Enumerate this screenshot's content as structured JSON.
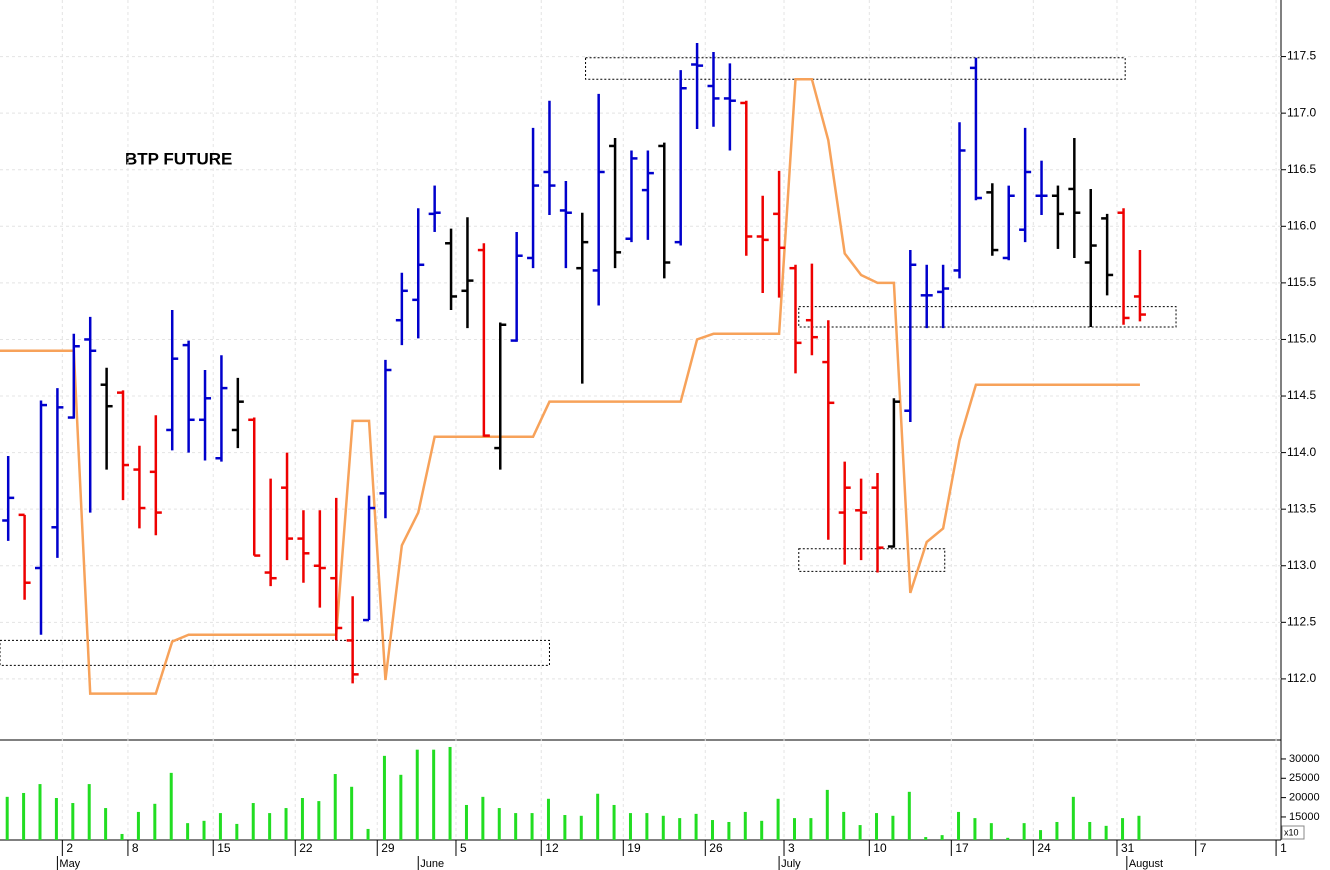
{
  "chart_data": [
    {
      "type": "ohlc",
      "title": "BTP FUTURE",
      "x": [
        0,
        1,
        2,
        3,
        4,
        5,
        6,
        7,
        8,
        9,
        10,
        11,
        12,
        13,
        14,
        15,
        16,
        17,
        18,
        19,
        20,
        21,
        22,
        23,
        24,
        25,
        26,
        27,
        28,
        29,
        30,
        31,
        32,
        33,
        34,
        35,
        36,
        37,
        38,
        39,
        40,
        41,
        42,
        43,
        44,
        45,
        46,
        47,
        48,
        49,
        50,
        51,
        52,
        53,
        54,
        55,
        56,
        57,
        58,
        59,
        60,
        61,
        62,
        63,
        64,
        65,
        66,
        67,
        68,
        69
      ],
      "open": [
        113.4,
        113.45,
        112.98,
        113.34,
        114.31,
        115.0,
        114.6,
        114.53,
        113.85,
        113.83,
        114.2,
        114.95,
        114.29,
        113.95,
        114.2,
        114.29,
        112.94,
        113.69,
        113.24,
        113.0,
        112.89,
        112.34,
        112.52,
        113.64,
        115.17,
        115.35,
        116.11,
        115.85,
        115.43,
        115.79,
        114.04,
        114.99,
        115.72,
        116.48,
        116.14,
        115.63,
        115.61,
        116.71,
        115.89,
        116.32,
        116.71,
        115.86,
        117.43,
        117.24,
        117.13,
        117.09,
        115.91,
        116.11,
        115.63,
        115.17,
        114.8,
        113.47,
        113.49,
        113.69,
        113.17,
        114.37,
        115.39,
        115.42,
        115.61,
        117.4,
        116.3,
        115.72,
        115.97,
        116.27,
        116.27,
        116.33,
        115.68,
        116.07,
        116.12,
        115.38
      ],
      "high": [
        113.97,
        113.45,
        114.46,
        114.57,
        115.05,
        115.2,
        114.75,
        114.55,
        114.06,
        114.33,
        115.26,
        114.99,
        114.73,
        114.86,
        114.66,
        114.31,
        113.77,
        114.0,
        113.49,
        113.49,
        113.6,
        112.73,
        113.62,
        114.82,
        115.59,
        116.16,
        116.36,
        115.98,
        116.08,
        115.85,
        115.15,
        115.95,
        116.87,
        117.11,
        116.4,
        116.12,
        117.17,
        116.78,
        116.67,
        116.67,
        116.74,
        117.38,
        117.62,
        117.54,
        117.44,
        117.11,
        116.27,
        116.49,
        115.66,
        115.67,
        115.17,
        113.92,
        113.77,
        113.82,
        114.48,
        115.79,
        115.66,
        115.66,
        116.92,
        117.49,
        116.38,
        116.36,
        116.87,
        116.58,
        116.36,
        116.78,
        116.33,
        116.11,
        116.16,
        115.79
      ],
      "low": [
        113.22,
        112.7,
        112.39,
        113.07,
        114.3,
        113.47,
        113.85,
        113.58,
        113.33,
        113.27,
        114.02,
        114.0,
        113.93,
        113.92,
        114.04,
        113.09,
        112.82,
        113.05,
        112.85,
        112.63,
        112.34,
        111.96,
        112.52,
        113.42,
        114.95,
        115.01,
        115.95,
        115.26,
        115.1,
        114.14,
        113.85,
        114.98,
        115.63,
        116.1,
        115.63,
        114.61,
        115.3,
        115.63,
        115.86,
        115.88,
        115.54,
        115.83,
        116.86,
        116.88,
        116.67,
        115.74,
        115.41,
        115.37,
        114.7,
        114.86,
        113.23,
        113.01,
        113.05,
        112.94,
        113.16,
        114.27,
        115.1,
        115.1,
        115.54,
        116.23,
        115.74,
        115.7,
        115.86,
        116.1,
        115.8,
        115.72,
        115.11,
        115.39,
        115.13,
        115.16
      ],
      "close": [
        113.6,
        112.85,
        114.42,
        114.4,
        114.94,
        114.9,
        114.41,
        113.89,
        113.51,
        113.47,
        114.83,
        114.29,
        114.48,
        114.57,
        114.45,
        113.09,
        112.89,
        113.24,
        113.11,
        112.98,
        112.45,
        112.04,
        113.51,
        114.73,
        115.43,
        115.66,
        116.12,
        115.38,
        115.52,
        114.15,
        115.13,
        115.74,
        116.36,
        116.36,
        116.12,
        115.86,
        116.48,
        115.77,
        116.6,
        116.47,
        115.68,
        117.22,
        117.42,
        117.13,
        117.11,
        115.91,
        115.88,
        115.81,
        114.97,
        115.02,
        114.44,
        113.69,
        113.47,
        113.16,
        114.45,
        115.66,
        115.39,
        115.45,
        116.67,
        116.25,
        115.79,
        116.27,
        116.48,
        116.27,
        116.11,
        116.12,
        115.83,
        115.57,
        115.19,
        115.22
      ],
      "colors": [
        "#0000cc",
        "#ee0000",
        "#0000cc",
        "#0000cc",
        "#0000cc",
        "#0000cc",
        "#000000",
        "#ee0000",
        "#ee0000",
        "#ee0000",
        "#0000cc",
        "#0000cc",
        "#0000cc",
        "#0000cc",
        "#000000",
        "#ee0000",
        "#ee0000",
        "#ee0000",
        "#ee0000",
        "#ee0000",
        "#ee0000",
        "#ee0000",
        "#0000cc",
        "#0000cc",
        "#0000cc",
        "#0000cc",
        "#0000cc",
        "#000000",
        "#000000",
        "#ee0000",
        "#000000",
        "#0000cc",
        "#0000cc",
        "#0000cc",
        "#0000cc",
        "#000000",
        "#0000cc",
        "#000000",
        "#0000cc",
        "#0000cc",
        "#000000",
        "#0000cc",
        "#0000cc",
        "#0000cc",
        "#0000cc",
        "#ee0000",
        "#ee0000",
        "#ee0000",
        "#ee0000",
        "#ee0000",
        "#ee0000",
        "#ee0000",
        "#ee0000",
        "#ee0000",
        "#000000",
        "#0000cc",
        "#0000cc",
        "#0000cc",
        "#0000cc",
        "#0000cc",
        "#000000",
        "#0000cc",
        "#0000cc",
        "#0000cc",
        "#000000",
        "#000000",
        "#000000",
        "#000000",
        "#ee0000",
        "#ee0000"
      ],
      "indicator": {
        "color": "#f7a25a",
        "x": [
          -0.5,
          4,
          5,
          9,
          10,
          11,
          20,
          21,
          22,
          23,
          24,
          25,
          26,
          32,
          33,
          41,
          42,
          43,
          47,
          48,
          49,
          50,
          51,
          52,
          53,
          54,
          55,
          56,
          57,
          58,
          59,
          69
        ],
        "values": [
          114.9,
          114.9,
          111.87,
          111.87,
          112.33,
          112.39,
          112.39,
          114.28,
          114.28,
          111.99,
          113.18,
          113.47,
          114.14,
          114.14,
          114.45,
          114.45,
          115.0,
          115.05,
          115.05,
          117.3,
          117.3,
          116.76,
          115.76,
          115.57,
          115.5,
          115.5,
          112.76,
          113.21,
          113.33,
          114.11,
          114.6,
          114.6
        ]
      },
      "zones": [
        {
          "x": [
            35.2,
            68.1
          ],
          "y": [
            117.3,
            117.49
          ]
        },
        {
          "x": [
            -0.5,
            33.0
          ],
          "y": [
            112.12,
            112.34
          ]
        },
        {
          "x": [
            48.2,
            71.2
          ],
          "y": [
            115.11,
            115.29
          ]
        },
        {
          "x": [
            48.2,
            57.1
          ],
          "y": [
            112.95,
            113.15
          ]
        }
      ],
      "xlim": [
        -0.5,
        77.6
      ],
      "ylim": [
        111.46,
        118.0
      ],
      "yticks": [
        {
          "value": 112,
          "label": "112.0"
        },
        112.5,
        {
          "value": 113,
          "label": "113.0"
        },
        113.5,
        {
          "value": 114,
          "label": "114.0"
        },
        114.5,
        {
          "value": 115,
          "label": "115.0"
        },
        115.5,
        {
          "value": 116,
          "label": "116.0"
        },
        116.5,
        {
          "value": 117,
          "label": "117.0"
        },
        117.5
      ],
      "grid": true
    },
    {
      "type": "bar",
      "color": "#22dd22",
      "unit_note": "x10",
      "x": [
        0,
        1,
        2,
        3,
        4,
        5,
        6,
        7,
        8,
        9,
        10,
        11,
        12,
        13,
        14,
        15,
        16,
        17,
        18,
        19,
        20,
        21,
        22,
        23,
        24,
        25,
        26,
        27,
        28,
        29,
        30,
        31,
        32,
        33,
        34,
        35,
        36,
        37,
        38,
        39,
        40,
        41,
        42,
        43,
        44,
        45,
        46,
        47,
        48,
        49,
        50,
        51,
        52,
        53,
        54,
        55,
        56,
        57,
        58,
        59,
        60,
        61,
        62,
        63,
        64,
        65,
        66,
        67,
        68,
        69
      ],
      "values": [
        20200,
        21200,
        23500,
        19900,
        18600,
        23500,
        17300,
        10600,
        16300,
        18400,
        26400,
        13400,
        14000,
        16000,
        13200,
        18600,
        16000,
        17300,
        19900,
        19100,
        26100,
        22800,
        11900,
        30800,
        25900,
        32400,
        32400,
        33100,
        18100,
        20200,
        17300,
        16000,
        16000,
        19700,
        15500,
        15300,
        21000,
        18100,
        16000,
        16000,
        15300,
        14700,
        15800,
        14200,
        13700,
        16300,
        14000,
        19700,
        14700,
        14700,
        22000,
        16300,
        12900,
        16000,
        15300,
        21500,
        9800,
        10300,
        16300,
        14700,
        13400,
        9600,
        13400,
        11600,
        13700,
        20200,
        13700,
        12700,
        14700,
        15300
      ],
      "xlim": [
        -0.5,
        77.6
      ],
      "ylim": [
        9040,
        34900
      ],
      "yticks": [
        15000,
        20000,
        25000,
        30000
      ],
      "xticks": [
        {
          "value": 3.3,
          "label": "2"
        },
        {
          "value": 7.3,
          "label": "8"
        },
        {
          "value": 12.5,
          "label": "15"
        },
        {
          "value": 17.5,
          "label": "22"
        },
        {
          "value": 22.5,
          "label": "29"
        },
        {
          "value": 27.3,
          "label": "5"
        },
        {
          "value": 32.5,
          "label": "12"
        },
        {
          "value": 37.5,
          "label": "19"
        },
        {
          "value": 42.5,
          "label": "26"
        },
        {
          "value": 47.3,
          "label": "3"
        },
        {
          "value": 52.5,
          "label": "10"
        },
        {
          "value": 57.5,
          "label": "17"
        },
        {
          "value": 62.5,
          "label": "24"
        },
        {
          "value": 67.6,
          "label": "31"
        },
        {
          "value": 72.4,
          "label": "7"
        },
        {
          "value": 77.3,
          "label": "1"
        }
      ],
      "months": [
        {
          "value": 3.0,
          "label": "May"
        },
        {
          "value": 25.0,
          "label": "June"
        },
        {
          "value": 47.0,
          "label": "July"
        },
        {
          "value": 68.2,
          "label": "August"
        }
      ]
    }
  ]
}
